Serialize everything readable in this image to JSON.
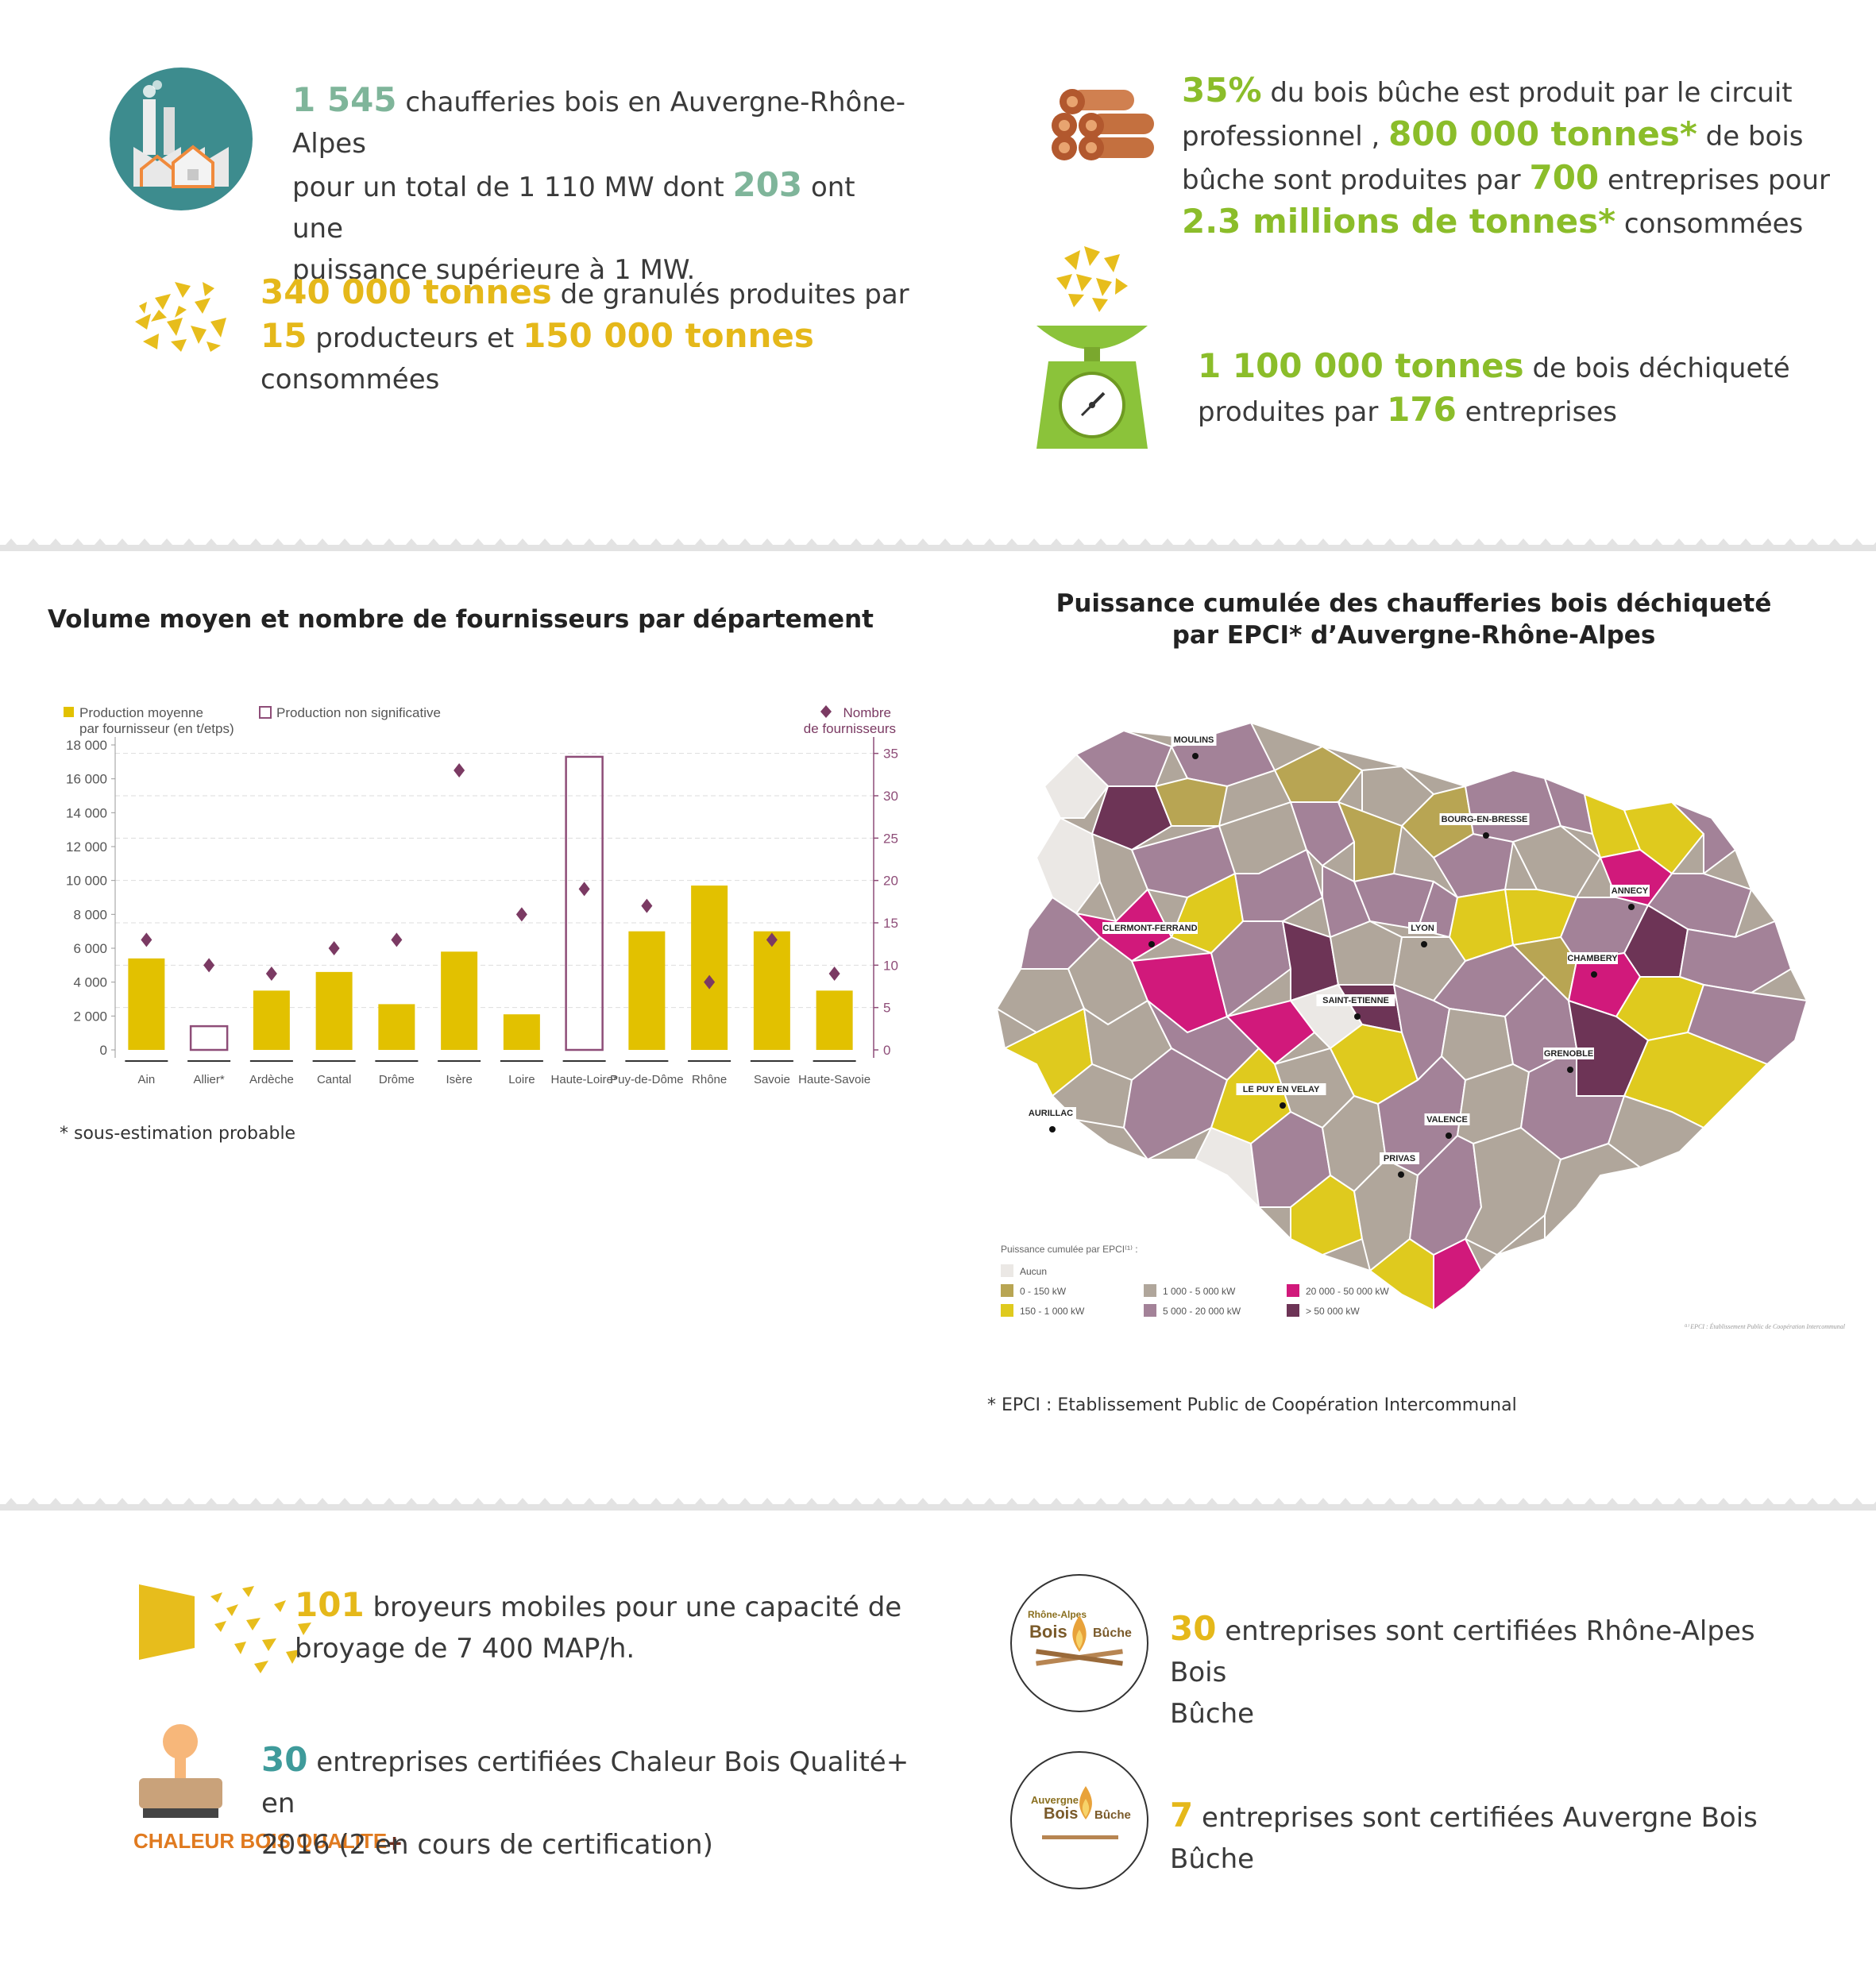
{
  "top": {
    "boilers": {
      "n1": "1 545",
      "t1": " chaufferies bois en Auvergne-Rhône-Alpes",
      "t2": "pour un total de 1 110 MW dont ",
      "n2": "203",
      "t3": " ont une",
      "t4": "puissance supérieure à 1 MW."
    },
    "pellets": {
      "n1": "340 000 tonnes",
      "t1": "  de granulés produites  par",
      "n2": "15",
      "t2": " producteurs et ",
      "n3": "150 000 tonnes",
      "t3": " consommées"
    },
    "logs": {
      "n1": "35%",
      "t1": "  du bois bûche est produit par le circuit",
      "t2": "professionnel , ",
      "n2": "800 000 tonnes*",
      "t3": " de bois",
      "t4": "bûche sont produites par ",
      "n3": "700",
      "t5": " entreprises pour",
      "n4": "2.3 millions de tonnes*",
      "t6": " consommées"
    },
    "chips": {
      "n1": "1 100 000 tonnes",
      "t1": " de bois déchiqueté",
      "t2": "produites par ",
      "n2": "176",
      "t3": " entreprises"
    }
  },
  "chart_title": "Volume moyen et nombre de fournisseurs par département",
  "chart_footnote": "* sous-estimation probable",
  "chart_data": {
    "type": "bar",
    "categories": [
      "Ain",
      "Allier*",
      "Ardèche",
      "Cantal",
      "Drôme",
      "Isère",
      "Loire",
      "Haute-Loire*",
      "Puy-de-Dôme",
      "Rhône",
      "Savoie",
      "Haute-Savoie"
    ],
    "series": [
      {
        "name": "Production moyenne par fournisseur (en t/etps)",
        "values": [
          5400,
          1400,
          3500,
          4600,
          2700,
          5800,
          2100,
          17300,
          7000,
          9700,
          7000,
          3500
        ],
        "non_significant": [
          false,
          true,
          false,
          false,
          false,
          false,
          false,
          true,
          false,
          false,
          false,
          false
        ],
        "axis": "left"
      },
      {
        "name": "Nombre de fournisseurs",
        "values": [
          13,
          10,
          9,
          12,
          13,
          33,
          16,
          19,
          17,
          8,
          13,
          9
        ],
        "axis": "right",
        "marker": "diamond"
      }
    ],
    "legend": [
      "Production moyenne",
      "par fournisseur (en t/etps)",
      "Production non significative",
      "Nombre",
      "de fournisseurs"
    ],
    "ylim": [
      0,
      18000
    ],
    "yticks": [
      "18 000",
      "16 000",
      "14 000",
      "12 000",
      "10 000",
      "8 000",
      "6 000",
      "4 000",
      "2 000",
      "0"
    ],
    "y2lim": [
      0,
      36
    ],
    "y2ticks": [
      "35",
      "30",
      "25",
      "20",
      "15",
      "10",
      "5",
      "0"
    ],
    "colors": {
      "bar": "#e2c100",
      "outline": "#8e4d78",
      "diamond": "#7b3a63",
      "axis": "#8e4d78"
    }
  },
  "map": {
    "title1": "Puissance cumulée des chaufferies bois déchiqueté",
    "title2": "par EPCI* d’Auvergne-Rhône-Alpes",
    "cities": [
      "MOULINS",
      "BOURG-EN-BRESSE",
      "ANNECY",
      "CLERMONT-FERRAND",
      "LYON",
      "CHAMBERY",
      "SAINT-ETIENNE",
      "GRENOBLE",
      "LE PUY EN VELAY",
      "AURILLAC",
      "VALENCE",
      "PRIVAS"
    ],
    "legend_title": "Puissance cumulée par EPCI⁽¹⁾ :",
    "legend": [
      {
        "label": "Aucun",
        "color": "#ebe8e5"
      },
      {
        "label": "0 - 150 kW",
        "color": "#b8a553"
      },
      {
        "label": "150 - 1 000 kW",
        "color": "#dfca1e"
      },
      {
        "label": "1 000 - 5 000 kW",
        "color": "#b0a69b"
      },
      {
        "label": "5 000 - 20 000 kW",
        "color": "#a38298"
      },
      {
        "label": "20 000 - 50 000 kW",
        "color": "#d1197b"
      },
      {
        "label": "> 50 000 kW",
        "color": "#6d3456"
      }
    ],
    "source_note": "⁽¹⁾ EPCI : Établissement Public de Coopération Intercommunal",
    "footnote": "* EPCI : Etablissement Public de Coopération Intercommunal"
  },
  "bottom": {
    "grinders": {
      "n1": "101",
      "t1": " broyeurs  mobiles pour une capacité de",
      "t2": "broyage de 7 400 MAP/h."
    },
    "cbq": {
      "n1": "30",
      "t1": " entreprises certifiées Chaleur Bois Qualité+ en",
      "t2": "2016  (2 en cours de certification)",
      "logo": "CHALEUR BOIS QUALITE"
    },
    "rabb": {
      "n1": "30",
      "t1": "  entreprises sont certifiées Rhône-Alpes Bois",
      "t2": "Bûche",
      "logo1": "Rhône-Alpes",
      "logo2": "Bois",
      "logo3": "Bûche"
    },
    "abb": {
      "n1": "7",
      "t1": " entreprises sont certifiées Auvergne Bois Bûche",
      "logo1": "Auvergne",
      "logo2": "Bois",
      "logo3": "Bûche"
    }
  }
}
